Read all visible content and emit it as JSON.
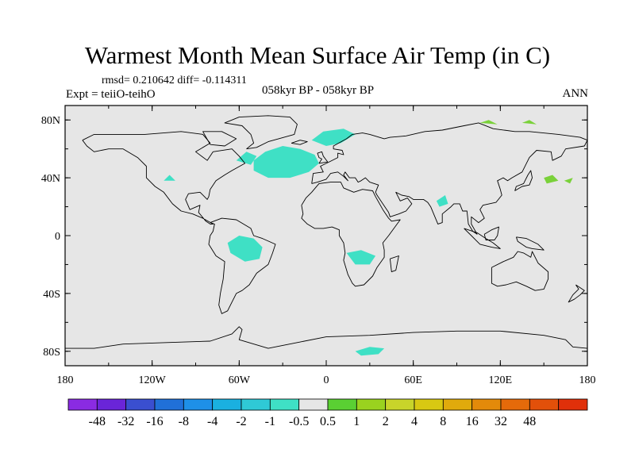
{
  "title": "Warmest Month Mean Surface Air Temp (in C)",
  "stats": "rmsd= 0.210642 diff= -0.114311",
  "experiment": "Expt = teiiO-teihO",
  "center_label": "058kyr BP - 058kyr BP",
  "season": "ANN",
  "map": {
    "projection": "cylindrical-equidistant",
    "lon_range": [
      -180,
      180
    ],
    "lat_range": [
      -90,
      90
    ],
    "background_color": "#e6e6e6",
    "coastline_color": "#000000",
    "x_ticks": [
      {
        "value": -180,
        "label": "180"
      },
      {
        "value": -120,
        "label": "120W"
      },
      {
        "value": -60,
        "label": "60W"
      },
      {
        "value": 0,
        "label": "0"
      },
      {
        "value": 60,
        "label": "60E"
      },
      {
        "value": 120,
        "label": "120E"
      },
      {
        "value": 180,
        "label": "180"
      }
    ],
    "y_ticks": [
      {
        "value": 80,
        "label": "80N"
      },
      {
        "value": 40,
        "label": "40N"
      },
      {
        "value": 0,
        "label": "0"
      },
      {
        "value": -40,
        "label": "40S"
      },
      {
        "value": -80,
        "label": "80S"
      }
    ],
    "anomaly_patches": [
      {
        "name": "north-atlantic",
        "color": "#3fe0c5",
        "poly": [
          [
            -50,
            52
          ],
          [
            -42,
            58
          ],
          [
            -30,
            62
          ],
          [
            -18,
            60
          ],
          [
            -8,
            56
          ],
          [
            -5,
            50
          ],
          [
            -12,
            44
          ],
          [
            -25,
            40
          ],
          [
            -40,
            40
          ],
          [
            -50,
            45
          ]
        ]
      },
      {
        "name": "norwegian-sea",
        "color": "#3fe0c5",
        "poly": [
          [
            -10,
            66
          ],
          [
            -2,
            72
          ],
          [
            12,
            74
          ],
          [
            20,
            70
          ],
          [
            10,
            64
          ],
          [
            0,
            62
          ]
        ]
      },
      {
        "name": "labrador",
        "color": "#3fe0c5",
        "poly": [
          [
            -62,
            52
          ],
          [
            -55,
            58
          ],
          [
            -48,
            55
          ],
          [
            -52,
            49
          ]
        ]
      },
      {
        "name": "amazon",
        "color": "#3fe0c5",
        "poly": [
          [
            -68,
            -5
          ],
          [
            -60,
            0
          ],
          [
            -50,
            -2
          ],
          [
            -44,
            -8
          ],
          [
            -46,
            -16
          ],
          [
            -56,
            -18
          ],
          [
            -66,
            -12
          ]
        ]
      },
      {
        "name": "southern-africa",
        "color": "#3fe0c5",
        "poly": [
          [
            14,
            -12
          ],
          [
            24,
            -10
          ],
          [
            34,
            -14
          ],
          [
            30,
            -20
          ],
          [
            20,
            -20
          ]
        ]
      },
      {
        "name": "india",
        "color": "#3fe0c5",
        "poly": [
          [
            76,
            24
          ],
          [
            82,
            28
          ],
          [
            84,
            22
          ],
          [
            78,
            20
          ]
        ]
      },
      {
        "name": "north-america",
        "color": "#3fe0c5",
        "poly": [
          [
            -112,
            38
          ],
          [
            -108,
            42
          ],
          [
            -104,
            38
          ]
        ]
      },
      {
        "name": "antarctic",
        "color": "#3fe0c5",
        "poly": [
          [
            20,
            -80
          ],
          [
            30,
            -77
          ],
          [
            40,
            -78
          ],
          [
            36,
            -82
          ],
          [
            24,
            -83
          ]
        ]
      },
      {
        "name": "north-pacific",
        "color": "#7ad13a",
        "poly": [
          [
            150,
            40
          ],
          [
            156,
            42
          ],
          [
            160,
            38
          ],
          [
            152,
            36
          ]
        ]
      },
      {
        "name": "kamchatka",
        "color": "#7ad13a",
        "poly": [
          [
            164,
            38
          ],
          [
            170,
            40
          ],
          [
            168,
            36
          ]
        ]
      },
      {
        "name": "siberia-arctic",
        "color": "#7ad13a",
        "poly": [
          [
            106,
            78
          ],
          [
            112,
            80
          ],
          [
            118,
            77
          ]
        ]
      },
      {
        "name": "east-siberian-sea",
        "color": "#7ad13a",
        "poly": [
          [
            135,
            78
          ],
          [
            140,
            80
          ],
          [
            145,
            77
          ]
        ]
      }
    ]
  },
  "colorbar": {
    "colors": [
      "#8a2be2",
      "#6a25d8",
      "#3a4fd0",
      "#2070d8",
      "#1e90e8",
      "#1ab0e0",
      "#2fc9d6",
      "#3fe0c5",
      "#e6e6e6",
      "#5ad033",
      "#9ad21f",
      "#c8d42a",
      "#d8c812",
      "#e0aa0c",
      "#e38a0a",
      "#e56a0a",
      "#e2500a",
      "#e0300a"
    ],
    "labels": [
      "-48",
      "-32",
      "-16",
      "-8",
      "-4",
      "-2",
      "-1",
      "-0.5",
      "0.5",
      "1",
      "2",
      "4",
      "8",
      "16",
      "32",
      "48"
    ]
  }
}
